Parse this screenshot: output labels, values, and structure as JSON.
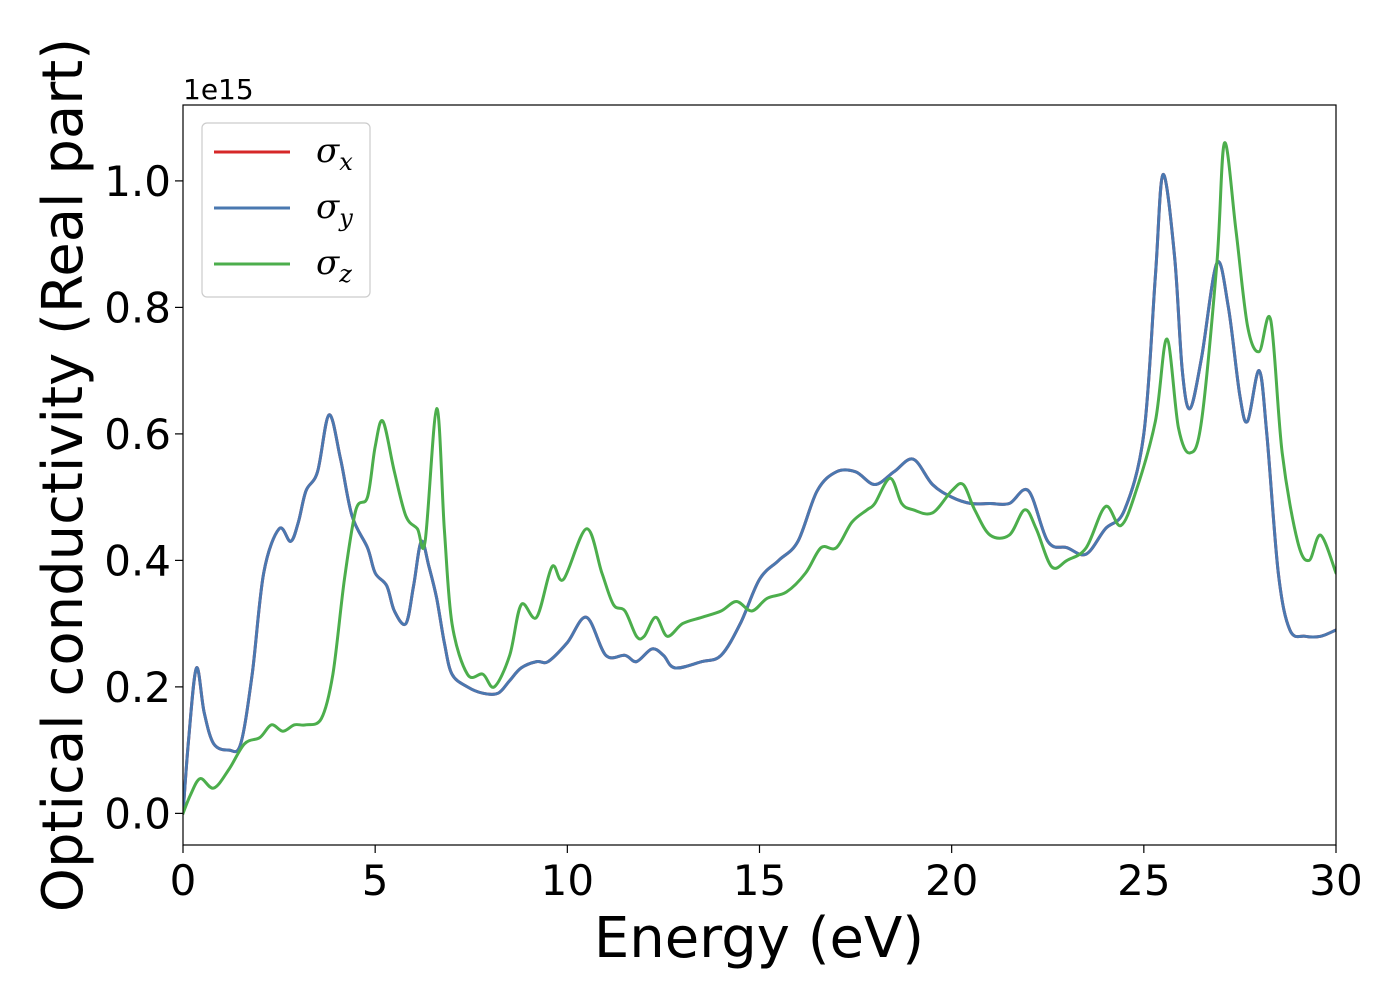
{
  "chart_data": {
    "type": "line",
    "title": "",
    "xlabel": "Energy (eV)",
    "ylabel": "Optical conductivity (Real part)",
    "y_offset_label": "1e15",
    "xlim": [
      0,
      30
    ],
    "ylim": [
      -0.05,
      1.12
    ],
    "xticks": [
      0,
      5,
      10,
      15,
      20,
      25,
      30
    ],
    "xtick_labels": [
      "0",
      "5",
      "10",
      "15",
      "20",
      "25",
      "30"
    ],
    "yticks": [
      0.0,
      0.2,
      0.4,
      0.6,
      0.8,
      1.0
    ],
    "ytick_labels": [
      "0.0",
      "0.2",
      "0.4",
      "0.6",
      "0.8",
      "1.0"
    ],
    "grid": false,
    "legend_position": "upper-left",
    "series": [
      {
        "name": "σx",
        "symbol": "σ",
        "subscript": "x",
        "color": "#d62728",
        "x": [
          0,
          0.15,
          0.35,
          0.55,
          0.8,
          1.2,
          1.5,
          1.8,
          2.1,
          2.5,
          2.8,
          3.0,
          3.2,
          3.5,
          3.8,
          4.1,
          4.4,
          4.8,
          5.0,
          5.3,
          5.5,
          5.8,
          6.0,
          6.2,
          6.4,
          6.6,
          6.8,
          7.0,
          7.4,
          7.8,
          8.2,
          8.5,
          8.8,
          9.2,
          9.5,
          10.0,
          10.5,
          11.0,
          11.5,
          11.8,
          12.2,
          12.5,
          12.8,
          13.5,
          14.0,
          14.5,
          15.0,
          15.5,
          16.0,
          16.5,
          17.0,
          17.5,
          18.0,
          18.5,
          19.0,
          19.5,
          20.0,
          20.5,
          21.0,
          21.5,
          22.0,
          22.5,
          23.0,
          23.5,
          24.0,
          24.5,
          25.0,
          25.3,
          25.5,
          25.8,
          26.0,
          26.2,
          26.5,
          26.9,
          27.2,
          27.5,
          27.7,
          28.0,
          28.2,
          28.5,
          28.8,
          29.2,
          29.6,
          30.0
        ],
        "y": [
          0.0,
          0.12,
          0.23,
          0.16,
          0.11,
          0.1,
          0.11,
          0.22,
          0.38,
          0.45,
          0.43,
          0.46,
          0.51,
          0.54,
          0.63,
          0.56,
          0.47,
          0.42,
          0.38,
          0.36,
          0.32,
          0.3,
          0.36,
          0.43,
          0.39,
          0.34,
          0.27,
          0.22,
          0.2,
          0.19,
          0.19,
          0.21,
          0.23,
          0.24,
          0.24,
          0.27,
          0.31,
          0.25,
          0.25,
          0.24,
          0.26,
          0.25,
          0.23,
          0.24,
          0.25,
          0.3,
          0.37,
          0.4,
          0.43,
          0.51,
          0.54,
          0.54,
          0.52,
          0.54,
          0.56,
          0.52,
          0.5,
          0.49,
          0.49,
          0.49,
          0.51,
          0.43,
          0.42,
          0.41,
          0.45,
          0.48,
          0.6,
          0.85,
          1.01,
          0.88,
          0.7,
          0.64,
          0.72,
          0.87,
          0.8,
          0.66,
          0.62,
          0.7,
          0.6,
          0.38,
          0.29,
          0.28,
          0.28,
          0.29
        ]
      },
      {
        "name": "σy",
        "symbol": "σ",
        "subscript": "y",
        "color": "#4a78b0",
        "x": [
          0,
          0.15,
          0.35,
          0.55,
          0.8,
          1.2,
          1.5,
          1.8,
          2.1,
          2.5,
          2.8,
          3.0,
          3.2,
          3.5,
          3.8,
          4.1,
          4.4,
          4.8,
          5.0,
          5.3,
          5.5,
          5.8,
          6.0,
          6.2,
          6.4,
          6.6,
          6.8,
          7.0,
          7.4,
          7.8,
          8.2,
          8.5,
          8.8,
          9.2,
          9.5,
          10.0,
          10.5,
          11.0,
          11.5,
          11.8,
          12.2,
          12.5,
          12.8,
          13.5,
          14.0,
          14.5,
          15.0,
          15.5,
          16.0,
          16.5,
          17.0,
          17.5,
          18.0,
          18.5,
          19.0,
          19.5,
          20.0,
          20.5,
          21.0,
          21.5,
          22.0,
          22.5,
          23.0,
          23.5,
          24.0,
          24.5,
          25.0,
          25.3,
          25.5,
          25.8,
          26.0,
          26.2,
          26.5,
          26.9,
          27.2,
          27.5,
          27.7,
          28.0,
          28.2,
          28.5,
          28.8,
          29.2,
          29.6,
          30.0
        ],
        "y": [
          0.0,
          0.12,
          0.23,
          0.16,
          0.11,
          0.1,
          0.11,
          0.22,
          0.38,
          0.45,
          0.43,
          0.46,
          0.51,
          0.54,
          0.63,
          0.56,
          0.47,
          0.42,
          0.38,
          0.36,
          0.32,
          0.3,
          0.36,
          0.43,
          0.39,
          0.34,
          0.27,
          0.22,
          0.2,
          0.19,
          0.19,
          0.21,
          0.23,
          0.24,
          0.24,
          0.27,
          0.31,
          0.25,
          0.25,
          0.24,
          0.26,
          0.25,
          0.23,
          0.24,
          0.25,
          0.3,
          0.37,
          0.4,
          0.43,
          0.51,
          0.54,
          0.54,
          0.52,
          0.54,
          0.56,
          0.52,
          0.5,
          0.49,
          0.49,
          0.49,
          0.51,
          0.43,
          0.42,
          0.41,
          0.45,
          0.48,
          0.6,
          0.85,
          1.01,
          0.88,
          0.7,
          0.64,
          0.72,
          0.87,
          0.8,
          0.66,
          0.62,
          0.7,
          0.6,
          0.38,
          0.29,
          0.28,
          0.28,
          0.29
        ]
      },
      {
        "name": "σz",
        "symbol": "σ",
        "subscript": "z",
        "color": "#4cae4c",
        "x": [
          0,
          0.2,
          0.45,
          0.8,
          1.2,
          1.6,
          2.0,
          2.3,
          2.6,
          2.9,
          3.2,
          3.6,
          3.9,
          4.2,
          4.5,
          4.8,
          5.0,
          5.2,
          5.5,
          5.8,
          6.1,
          6.3,
          6.6,
          6.8,
          7.0,
          7.4,
          7.8,
          8.1,
          8.5,
          8.8,
          9.2,
          9.6,
          9.9,
          10.5,
          10.9,
          11.2,
          11.5,
          11.8,
          12.0,
          12.3,
          12.6,
          13.0,
          13.5,
          14.0,
          14.4,
          14.8,
          15.2,
          15.7,
          16.2,
          16.6,
          17.0,
          17.4,
          17.8,
          18.0,
          18.4,
          18.7,
          19.0,
          19.5,
          20.0,
          20.3,
          20.6,
          21.0,
          21.5,
          21.9,
          22.2,
          22.6,
          23.0,
          23.5,
          24.0,
          24.4,
          24.8,
          25.3,
          25.6,
          25.9,
          26.2,
          26.5,
          26.9,
          27.1,
          27.4,
          27.7,
          28.0,
          28.3,
          28.6,
          29.0,
          29.3,
          29.6,
          30.0
        ],
        "y": [
          0.0,
          0.03,
          0.055,
          0.04,
          0.07,
          0.11,
          0.12,
          0.14,
          0.13,
          0.14,
          0.14,
          0.15,
          0.22,
          0.37,
          0.48,
          0.5,
          0.58,
          0.62,
          0.54,
          0.47,
          0.45,
          0.43,
          0.64,
          0.45,
          0.3,
          0.22,
          0.22,
          0.2,
          0.25,
          0.33,
          0.31,
          0.39,
          0.37,
          0.45,
          0.38,
          0.33,
          0.32,
          0.28,
          0.28,
          0.31,
          0.28,
          0.3,
          0.31,
          0.32,
          0.335,
          0.32,
          0.34,
          0.35,
          0.38,
          0.42,
          0.42,
          0.46,
          0.48,
          0.49,
          0.53,
          0.49,
          0.48,
          0.475,
          0.51,
          0.52,
          0.48,
          0.44,
          0.44,
          0.48,
          0.45,
          0.39,
          0.4,
          0.42,
          0.485,
          0.455,
          0.51,
          0.62,
          0.75,
          0.61,
          0.57,
          0.62,
          0.87,
          1.06,
          0.92,
          0.77,
          0.73,
          0.78,
          0.57,
          0.43,
          0.4,
          0.44,
          0.38
        ]
      }
    ]
  }
}
